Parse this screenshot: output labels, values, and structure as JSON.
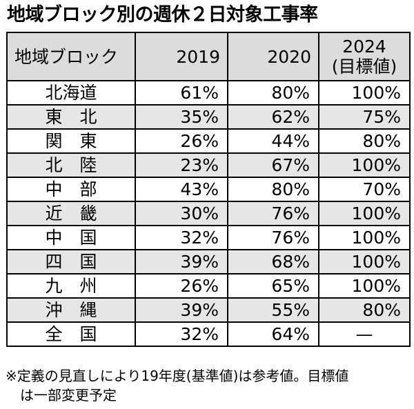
{
  "title": "地域ブロック別の週休２日対象工事率",
  "table": {
    "headers": [
      "地域ブロック",
      "2019",
      "2020",
      "2024",
      "(目標値)"
    ],
    "rows": [
      {
        "region": "北海道",
        "v2019": "61%",
        "v2020": "80%",
        "v2024": "100%"
      },
      {
        "region": "東　北",
        "v2019": "35%",
        "v2020": "62%",
        "v2024": "75%"
      },
      {
        "region": "関　東",
        "v2019": "26%",
        "v2020": "44%",
        "v2024": "80%"
      },
      {
        "region": "北　陸",
        "v2019": "23%",
        "v2020": "67%",
        "v2024": "100%"
      },
      {
        "region": "中　部",
        "v2019": "43%",
        "v2020": "80%",
        "v2024": "70%"
      },
      {
        "region": "近　畿",
        "v2019": "30%",
        "v2020": "76%",
        "v2024": "100%"
      },
      {
        "region": "中　国",
        "v2019": "32%",
        "v2020": "76%",
        "v2024": "100%"
      },
      {
        "region": "四　国",
        "v2019": "39%",
        "v2020": "68%",
        "v2024": "100%"
      },
      {
        "region": "九　州",
        "v2019": "26%",
        "v2020": "65%",
        "v2024": "100%"
      },
      {
        "region": "沖　縄",
        "v2019": "39%",
        "v2020": "55%",
        "v2024": "80%"
      },
      {
        "region": "全　国",
        "v2019": "32%",
        "v2020": "64%",
        "v2024": "—"
      }
    ]
  },
  "note": {
    "line1": "※定義の見直しにより19年度(基準値)は参考値。目標値",
    "line2": "は一部変更予定"
  }
}
